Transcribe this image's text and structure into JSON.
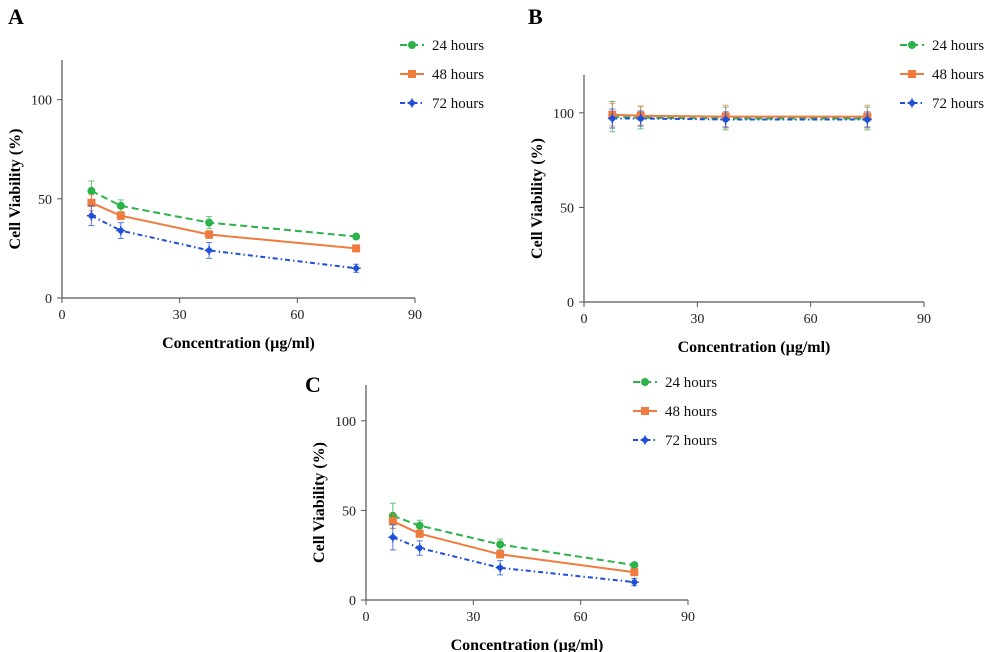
{
  "chart_data": [
    {
      "panel": "A",
      "type": "line",
      "xlabel": "Concentration (µg/ml)",
      "ylabel": "Cell Viability (%)",
      "xlim": [
        0,
        90
      ],
      "ylim": [
        0,
        120
      ],
      "xticks": [
        0,
        30,
        60,
        90
      ],
      "yticks": [
        0,
        50,
        100
      ],
      "legend_position": "top-right",
      "x": [
        7.5,
        15,
        37.5,
        75
      ],
      "series": [
        {
          "name": "24 hours",
          "color": "#2bb34a",
          "style": "dashed",
          "marker": "circle",
          "values": [
            54,
            46.5,
            38,
            31
          ],
          "errors": [
            5,
            3,
            3,
            1
          ]
        },
        {
          "name": "48 hours",
          "color": "#f07b3f",
          "style": "solid",
          "marker": "square",
          "values": [
            48,
            41.5,
            32,
            25
          ],
          "errors": [
            4,
            2,
            2,
            1
          ]
        },
        {
          "name": "72 hours",
          "color": "#1f4fd8",
          "style": "dashdot",
          "marker": "star",
          "values": [
            41.5,
            34,
            24,
            15
          ],
          "errors": [
            5,
            4,
            4,
            2
          ]
        }
      ]
    },
    {
      "panel": "B",
      "type": "line",
      "xlabel": "Concentration (µg/ml)",
      "ylabel": "Cell Viability (%)",
      "xlim": [
        0,
        90
      ],
      "ylim": [
        0,
        120
      ],
      "xticks": [
        0,
        30,
        60,
        90
      ],
      "yticks": [
        0,
        50,
        100
      ],
      "legend_position": "top-right",
      "x": [
        7.5,
        15,
        37.5,
        75
      ],
      "series": [
        {
          "name": "24 hours",
          "color": "#2bb34a",
          "style": "dashed",
          "marker": "circle",
          "values": [
            98,
            97.5,
            97,
            97
          ],
          "errors": [
            8,
            6,
            6,
            6
          ]
        },
        {
          "name": "48 hours",
          "color": "#f07b3f",
          "style": "solid",
          "marker": "square",
          "values": [
            99,
            98.5,
            98,
            98
          ],
          "errors": [
            6,
            5,
            6,
            6
          ]
        },
        {
          "name": "72 hours",
          "color": "#1f4fd8",
          "style": "dashdot",
          "marker": "star",
          "values": [
            97,
            97,
            96.5,
            96.5
          ],
          "errors": [
            5,
            4,
            4,
            4
          ]
        }
      ]
    },
    {
      "panel": "C",
      "type": "line",
      "xlabel": "Concentration (µg/ml)",
      "ylabel": "Cell Viability (%)",
      "xlim": [
        0,
        90
      ],
      "ylim": [
        0,
        120
      ],
      "xticks": [
        0,
        30,
        60,
        90
      ],
      "yticks": [
        0,
        50,
        100
      ],
      "legend_position": "top-right",
      "x": [
        7.5,
        15,
        37.5,
        75
      ],
      "series": [
        {
          "name": "24 hours",
          "color": "#2bb34a",
          "style": "dashed",
          "marker": "circle",
          "values": [
            47,
            41.5,
            31,
            19.5
          ],
          "errors": [
            7,
            3,
            3,
            1
          ]
        },
        {
          "name": "48 hours",
          "color": "#f07b3f",
          "style": "solid",
          "marker": "square",
          "values": [
            44,
            37,
            25.5,
            15.5
          ],
          "errors": [
            4,
            2,
            2,
            1
          ]
        },
        {
          "name": "72 hours",
          "color": "#1f4fd8",
          "style": "dashdot",
          "marker": "star",
          "values": [
            35,
            29,
            18,
            10
          ],
          "errors": [
            7,
            4,
            4,
            2
          ]
        }
      ]
    }
  ]
}
